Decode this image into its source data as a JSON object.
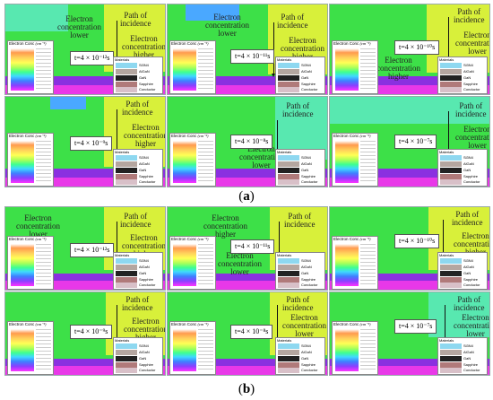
{
  "legend": {
    "title": "Electron Conc",
    "unit": "(cm⁻³)"
  },
  "materials": {
    "title": "Materials",
    "items": [
      {
        "name": "Si3N4",
        "color": "#8ed8f0"
      },
      {
        "name": "AlGaN",
        "color": "#b4a6a0"
      },
      {
        "name": "GaN",
        "color": "#222222"
      },
      {
        "name": "Sapphire",
        "color": "#b07a7a"
      },
      {
        "name": "Conductor",
        "color": "#d8c0c8"
      }
    ]
  },
  "annotations": {
    "electron": "Electron",
    "concentration": "concentration",
    "lower": "lower",
    "higher": "higher",
    "path": "Path of",
    "incidence": "incidence"
  },
  "times": [
    "t=4 × 10⁻¹²s",
    "t=4 × 10⁻¹¹s",
    "t=4 × 10⁻¹⁰s",
    "t=4 × 10⁻⁹s",
    "t=4 × 10⁻⁸s",
    "t=4 × 10⁻⁷s"
  ],
  "panel_labels": {
    "a": "a",
    "b": "b"
  },
  "colors": {
    "field_green": "#3de048",
    "field_yellow": "#d8f03a",
    "field_cyan": "#58e8b0",
    "substrate_magenta": "#e838e8",
    "substrate_violet": "#8a30e0"
  }
}
